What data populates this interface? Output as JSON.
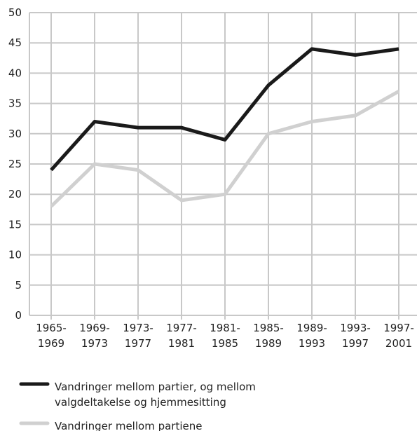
{
  "chart_data": {
    "type": "line",
    "categories": [
      "1965-\n1969",
      "1969-\n1973",
      "1973-\n1977",
      "1977-\n1981",
      "1981-\n1985",
      "1985-\n1989",
      "1989-\n1993",
      "1993-\n1997",
      "1997-\n2001"
    ],
    "series": [
      {
        "name": "Vandringer mellom partier, og mellom\nvalgdeltakelse og hjemmesitting",
        "color": "#1a1a1a",
        "values": [
          24,
          32,
          31,
          31,
          29,
          38,
          44,
          43,
          44
        ]
      },
      {
        "name": "Vandringer mellom partiene",
        "color": "#d0d0d0",
        "values": [
          18,
          25,
          24,
          19,
          20,
          30,
          32,
          33,
          37
        ]
      }
    ],
    "ylim": [
      0,
      50
    ],
    "yticks": [
      0,
      5,
      10,
      15,
      20,
      25,
      30,
      35,
      40,
      45,
      50
    ],
    "grid": true
  }
}
